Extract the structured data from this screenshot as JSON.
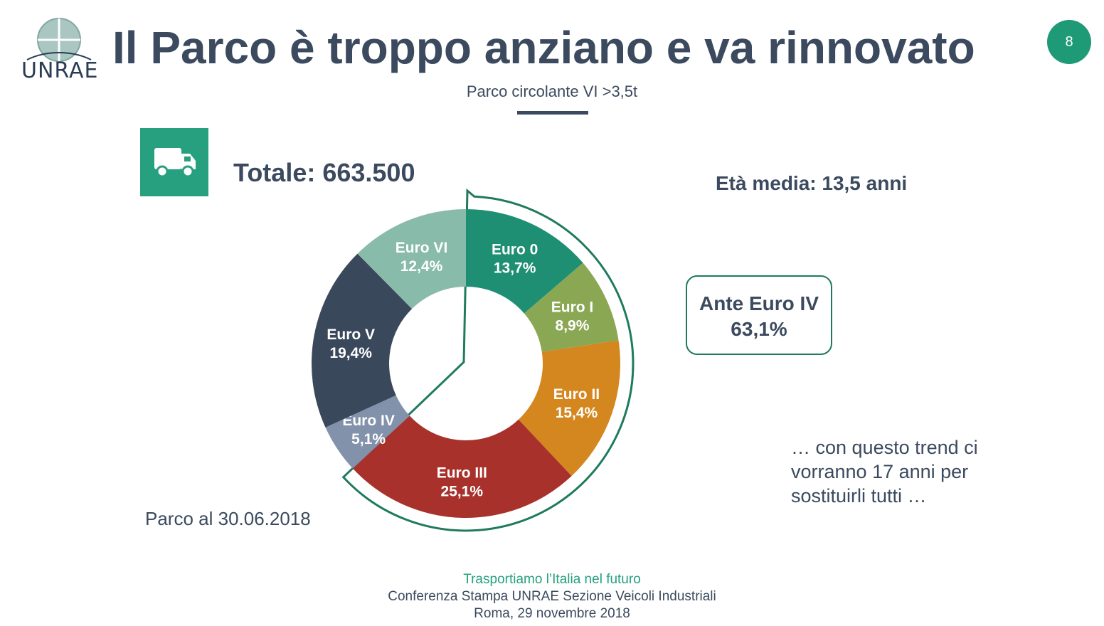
{
  "header": {
    "logo_text": "UNRAE",
    "title": "Il Parco è troppo anziano e va rinnovato",
    "page_number": "8",
    "subtitle": "Parco circolante VI >3,5t"
  },
  "summary": {
    "total": "Totale: 663.500",
    "avg_age": "Età media: 13,5 anni",
    "ante_title": "Ante Euro IV",
    "ante_value": "63,1%",
    "trend_text": "… con questo trend ci vorranno 17 anni per sostituirli tutti …",
    "park_date": "Parco al 30.06.2018"
  },
  "icons": {
    "truck": "truck-icon",
    "logo": "unrae-logo-icon"
  },
  "colors": {
    "accent": "#26a07e",
    "text": "#3b4a5e",
    "highlight_outline": "#1f7a5e"
  },
  "chart_data": {
    "type": "pie",
    "donut": true,
    "title": "",
    "categories": [
      "Euro 0",
      "Euro I",
      "Euro II",
      "Euro III",
      "Euro IV",
      "Euro V",
      "Euro VI"
    ],
    "values": [
      13.7,
      8.9,
      15.4,
      25.1,
      5.1,
      19.4,
      12.4
    ],
    "labels": [
      "13,7%",
      "8,9%",
      "15,4%",
      "25,1%",
      "5,1%",
      "19,4%",
      "12,4%"
    ],
    "colors": [
      "#1f8f74",
      "#8aa754",
      "#d4861f",
      "#a8312b",
      "#8292ab",
      "#3a485c",
      "#88bba9"
    ],
    "highlight_group": [
      "Euro 0",
      "Euro I",
      "Euro II",
      "Euro III"
    ]
  },
  "footer": {
    "tagline": "Trasportiamo l’Italia nel futuro",
    "line1": "Conferenza Stampa UNRAE Sezione Veicoli Industriali",
    "line2": "Roma, 29 novembre 2018"
  }
}
